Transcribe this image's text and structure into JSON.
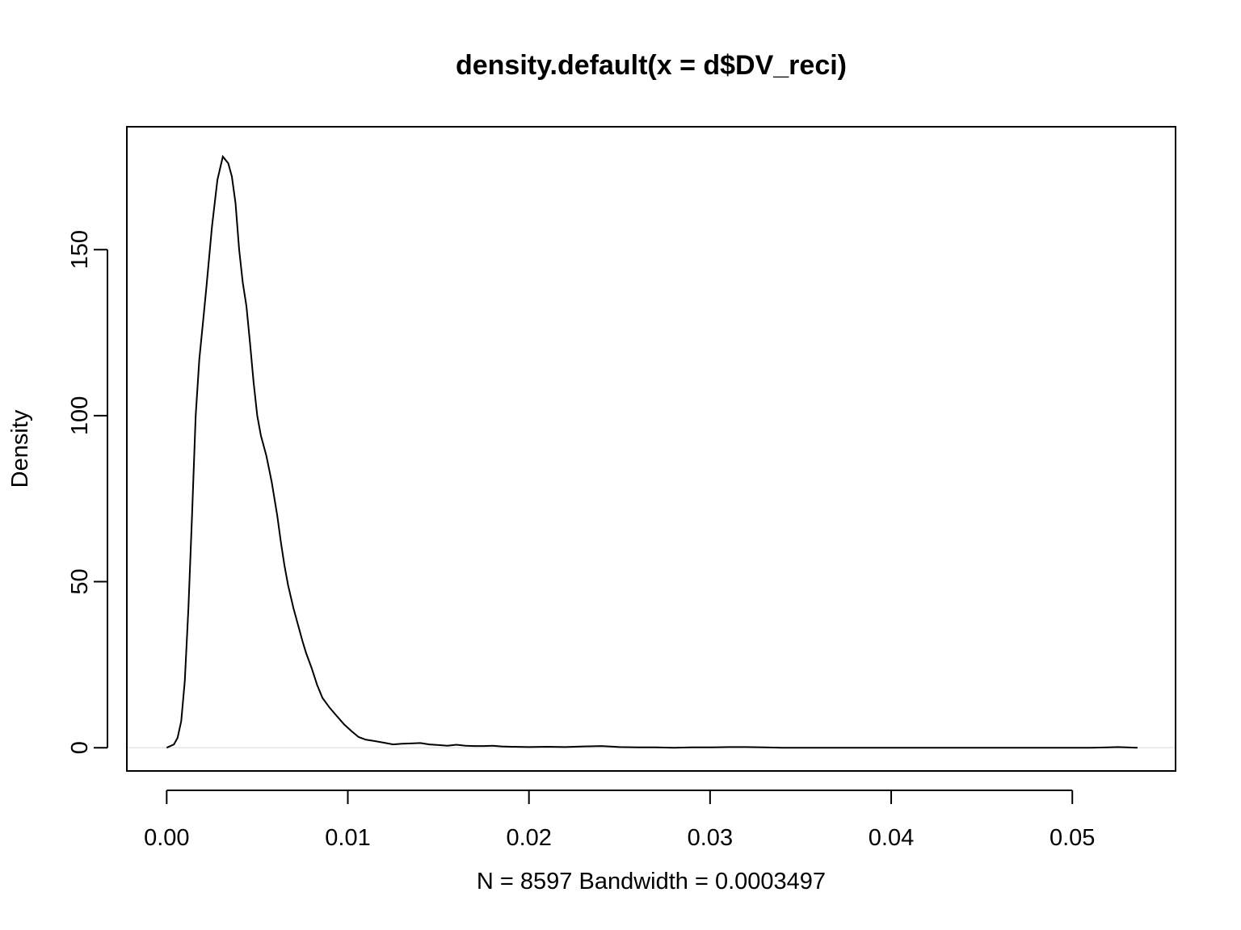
{
  "chart_data": {
    "type": "line",
    "title": "density.default(x = d$DV_reci)",
    "xlabel": "N = 8597   Bandwidth = 0.0003497",
    "ylabel": "Density",
    "xlim": [
      -0.0022,
      0.0557
    ],
    "ylim": [
      -7,
      187
    ],
    "x_ticks": [
      0.0,
      0.01,
      0.02,
      0.03,
      0.04,
      0.05
    ],
    "x_tick_labels": [
      "0.00",
      "0.01",
      "0.02",
      "0.03",
      "0.04",
      "0.05"
    ],
    "y_ticks": [
      0,
      50,
      100,
      150
    ],
    "y_tick_labels": [
      "0",
      "50",
      "100",
      "150"
    ],
    "zero_reference_line": true,
    "grid": false,
    "colors": {
      "line": "#000000",
      "frame": "#000000",
      "zero_line": "#e6e6e6"
    },
    "series": [
      {
        "x": [
          0.0,
          0.0004,
          0.0006,
          0.0008,
          0.001,
          0.0012,
          0.0014,
          0.0016,
          0.0018,
          0.002,
          0.0022,
          0.0025,
          0.0028,
          0.0031,
          0.0034,
          0.0036,
          0.0038,
          0.004,
          0.0042,
          0.0044,
          0.0046,
          0.0048,
          0.005,
          0.0052,
          0.0055,
          0.0058,
          0.0061,
          0.0063,
          0.0065,
          0.0067,
          0.007,
          0.0073,
          0.0075,
          0.0077,
          0.008,
          0.0083,
          0.0086,
          0.009,
          0.0094,
          0.0098,
          0.0102,
          0.0106,
          0.011,
          0.0115,
          0.012,
          0.0125,
          0.013,
          0.0135,
          0.014,
          0.0145,
          0.015,
          0.0155,
          0.016,
          0.0165,
          0.017,
          0.0175,
          0.018,
          0.0185,
          0.019,
          0.02,
          0.021,
          0.022,
          0.023,
          0.024,
          0.025,
          0.026,
          0.027,
          0.028,
          0.029,
          0.03,
          0.031,
          0.032,
          0.033,
          0.034,
          0.035,
          0.036,
          0.038,
          0.04,
          0.042,
          0.044,
          0.046,
          0.048,
          0.05,
          0.051,
          0.052,
          0.0525,
          0.053,
          0.0536
        ],
        "values": [
          0.0,
          1.0,
          3.0,
          8.0,
          20.0,
          42.0,
          70.0,
          100.0,
          117.0,
          128.0,
          139.0,
          157.0,
          171.0,
          178.0,
          176.0,
          172.0,
          164.0,
          150.0,
          140.0,
          133.0,
          122.0,
          110.0,
          100.0,
          94.0,
          88.0,
          80.0,
          70.0,
          62.0,
          55.0,
          49.0,
          42.0,
          36.0,
          32.0,
          28.5,
          24.0,
          19.0,
          15.0,
          12.0,
          9.5,
          7.0,
          5.0,
          3.2,
          2.4,
          2.0,
          1.5,
          1.0,
          1.2,
          1.3,
          1.4,
          1.0,
          0.8,
          0.6,
          0.9,
          0.6,
          0.5,
          0.5,
          0.6,
          0.4,
          0.3,
          0.2,
          0.3,
          0.2,
          0.4,
          0.5,
          0.2,
          0.1,
          0.1,
          0.0,
          0.1,
          0.1,
          0.2,
          0.2,
          0.1,
          0.0,
          0.0,
          0.0,
          0.0,
          0.0,
          0.0,
          0.0,
          0.0,
          0.0,
          0.0,
          0.0,
          0.1,
          0.2,
          0.1,
          0.0
        ]
      }
    ]
  }
}
